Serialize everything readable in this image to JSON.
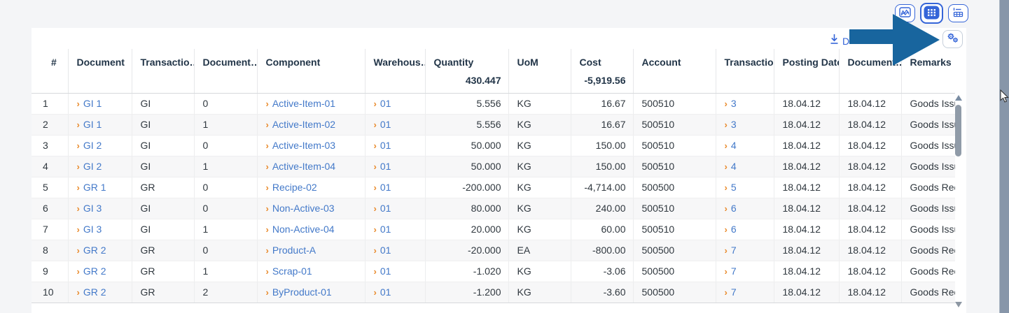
{
  "page": {
    "background": "#F4F5F7"
  },
  "colors": {
    "accent_blue": "#3565D8",
    "link_blue": "#4379C9",
    "chevron_orange": "#E98A2B",
    "annotation_arrow_blue": "#18659E",
    "header_text": "#223548",
    "window_scrollbar_gray": "#8796A9"
  },
  "view_switcher": {
    "buttons": [
      {
        "icon": "line-chart-icon",
        "selected": false
      },
      {
        "icon": "grid-icon",
        "selected": true
      },
      {
        "icon": "chart-table-icon",
        "selected": false
      }
    ]
  },
  "toolbar": {
    "download_icon": "download-icon",
    "download_label_visible": "D",
    "settings_icon": "gears-icon"
  },
  "table": {
    "headers": [
      "#",
      "Document",
      "Transactio…",
      "Document…",
      "Component",
      "Warehous…",
      "Quantity",
      "UoM",
      "Cost",
      "Account",
      "Transactio…",
      "Posting Date",
      "Document…",
      "Remarks"
    ],
    "totals": {
      "quantity": "430.447",
      "cost": "-5,919.56"
    },
    "rows": [
      {
        "n": "1",
        "document": "GI 1",
        "txn_type": "GI",
        "doc_line": "0",
        "component": "Active-Item-01",
        "warehouse": "01",
        "quantity": "5.556",
        "uom": "KG",
        "cost": "16.67",
        "account": "500510",
        "transaction": "3",
        "posting_date": "18.04.12",
        "document_date": "18.04.12",
        "remarks": "Goods Issue"
      },
      {
        "n": "2",
        "document": "GI 1",
        "txn_type": "GI",
        "doc_line": "1",
        "component": "Active-Item-02",
        "warehouse": "01",
        "quantity": "5.556",
        "uom": "KG",
        "cost": "16.67",
        "account": "500510",
        "transaction": "3",
        "posting_date": "18.04.12",
        "document_date": "18.04.12",
        "remarks": "Goods Issue"
      },
      {
        "n": "3",
        "document": "GI 2",
        "txn_type": "GI",
        "doc_line": "0",
        "component": "Active-Item-03",
        "warehouse": "01",
        "quantity": "50.000",
        "uom": "KG",
        "cost": "150.00",
        "account": "500510",
        "transaction": "4",
        "posting_date": "18.04.12",
        "document_date": "18.04.12",
        "remarks": "Goods Issue"
      },
      {
        "n": "4",
        "document": "GI 2",
        "txn_type": "GI",
        "doc_line": "1",
        "component": "Active-Item-04",
        "warehouse": "01",
        "quantity": "50.000",
        "uom": "KG",
        "cost": "150.00",
        "account": "500510",
        "transaction": "4",
        "posting_date": "18.04.12",
        "document_date": "18.04.12",
        "remarks": "Goods Issue"
      },
      {
        "n": "5",
        "document": "GR 1",
        "txn_type": "GR",
        "doc_line": "0",
        "component": "Recipe-02",
        "warehouse": "01",
        "quantity": "-200.000",
        "uom": "KG",
        "cost": "-4,714.00",
        "account": "500500",
        "transaction": "5",
        "posting_date": "18.04.12",
        "document_date": "18.04.12",
        "remarks": "Goods Rece"
      },
      {
        "n": "6",
        "document": "GI 3",
        "txn_type": "GI",
        "doc_line": "0",
        "component": "Non-Active-03",
        "warehouse": "01",
        "quantity": "80.000",
        "uom": "KG",
        "cost": "240.00",
        "account": "500510",
        "transaction": "6",
        "posting_date": "18.04.12",
        "document_date": "18.04.12",
        "remarks": "Goods Issue"
      },
      {
        "n": "7",
        "document": "GI 3",
        "txn_type": "GI",
        "doc_line": "1",
        "component": "Non-Active-04",
        "warehouse": "01",
        "quantity": "20.000",
        "uom": "KG",
        "cost": "60.00",
        "account": "500510",
        "transaction": "6",
        "posting_date": "18.04.12",
        "document_date": "18.04.12",
        "remarks": "Goods Issue"
      },
      {
        "n": "8",
        "document": "GR 2",
        "txn_type": "GR",
        "doc_line": "0",
        "component": "Product-A",
        "warehouse": "01",
        "quantity": "-20.000",
        "uom": "EA",
        "cost": "-800.00",
        "account": "500500",
        "transaction": "7",
        "posting_date": "18.04.12",
        "document_date": "18.04.12",
        "remarks": "Goods Rece"
      },
      {
        "n": "9",
        "document": "GR 2",
        "txn_type": "GR",
        "doc_line": "1",
        "component": "Scrap-01",
        "warehouse": "01",
        "quantity": "-1.020",
        "uom": "KG",
        "cost": "-3.06",
        "account": "500500",
        "transaction": "7",
        "posting_date": "18.04.12",
        "document_date": "18.04.12",
        "remarks": "Goods Rece"
      },
      {
        "n": "10",
        "document": "GR 2",
        "txn_type": "GR",
        "doc_line": "2",
        "component": "ByProduct-01",
        "warehouse": "01",
        "quantity": "-1.200",
        "uom": "KG",
        "cost": "-3.60",
        "account": "500500",
        "transaction": "7",
        "posting_date": "18.04.12",
        "document_date": "18.04.12",
        "remarks": "Goods Rece"
      }
    ]
  }
}
